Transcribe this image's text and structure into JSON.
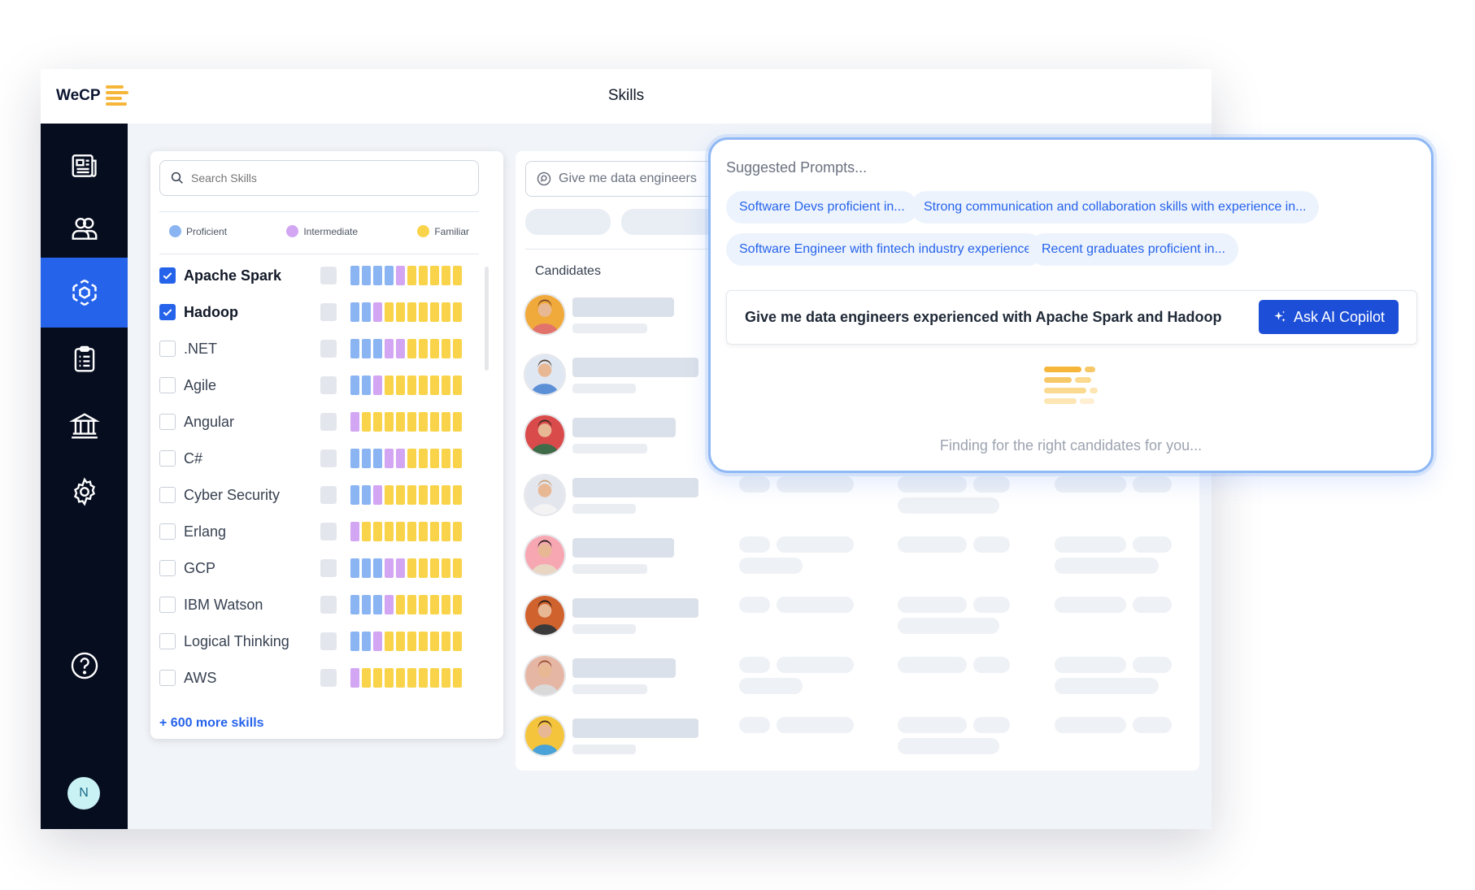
{
  "app": {
    "logo_text": "WeCP",
    "page_title": "Skills",
    "user_initial": "N"
  },
  "sidebar": {
    "items": [
      {
        "name": "document-icon",
        "active": false
      },
      {
        "name": "users-icon",
        "active": false
      },
      {
        "name": "skills-hub-icon",
        "active": true
      },
      {
        "name": "clipboard-icon",
        "active": false
      },
      {
        "name": "bank-icon",
        "active": false
      },
      {
        "name": "gear-icon",
        "active": false
      }
    ],
    "help_icon": "help-icon"
  },
  "skills": {
    "search_placeholder": "Search Skills",
    "legend": [
      {
        "label": "Proficient",
        "color": "#8ab4f2"
      },
      {
        "label": "Intermediate",
        "color": "#d2a6f2"
      },
      {
        "label": "Familiar",
        "color": "#f9d44a"
      }
    ],
    "items": [
      {
        "name": "Apache Spark",
        "checked": true,
        "proficient": 4,
        "intermediate": 1,
        "familiar": 5
      },
      {
        "name": "Hadoop",
        "checked": true,
        "proficient": 2,
        "intermediate": 1,
        "familiar": 7
      },
      {
        "name": ".NET",
        "checked": false,
        "proficient": 3,
        "intermediate": 2,
        "familiar": 5
      },
      {
        "name": "Agile",
        "checked": false,
        "proficient": 2,
        "intermediate": 1,
        "familiar": 7
      },
      {
        "name": "Angular",
        "checked": false,
        "proficient": 0,
        "intermediate": 1,
        "familiar": 9
      },
      {
        "name": "C#",
        "checked": false,
        "proficient": 3,
        "intermediate": 2,
        "familiar": 5
      },
      {
        "name": "Cyber Security",
        "checked": false,
        "proficient": 2,
        "intermediate": 1,
        "familiar": 7
      },
      {
        "name": "Erlang",
        "checked": false,
        "proficient": 0,
        "intermediate": 1,
        "familiar": 9
      },
      {
        "name": "GCP",
        "checked": false,
        "proficient": 3,
        "intermediate": 2,
        "familiar": 5
      },
      {
        "name": "IBM Watson",
        "checked": false,
        "proficient": 3,
        "intermediate": 1,
        "familiar": 6
      },
      {
        "name": "Logical Thinking",
        "checked": false,
        "proficient": 2,
        "intermediate": 1,
        "familiar": 7
      },
      {
        "name": "AWS",
        "checked": false,
        "proficient": 0,
        "intermediate": 1,
        "familiar": 9
      }
    ],
    "more_link": "+ 600 more skills"
  },
  "candidates": {
    "search_value": "Give me data engineers",
    "label": "Candidates",
    "count": 8
  },
  "copilot": {
    "suggested_title": "Suggested Prompts...",
    "chips": [
      "Software Devs proficient in...",
      "Strong communication and collaboration skills with experience in...",
      "Software Engineer with fintech industry experience",
      "Recent graduates proficient in..."
    ],
    "query": "Give me data engineers experienced with Apache Spark and Hadoop",
    "button_label": "Ask AI Copilot",
    "status": "Finding for the right candidates for you..."
  },
  "colors": {
    "accent": "#2563eb",
    "sidebar": "#060d1f",
    "proficient": "#8ab4f2",
    "intermediate": "#d2a6f2",
    "familiar": "#f9d44a"
  }
}
